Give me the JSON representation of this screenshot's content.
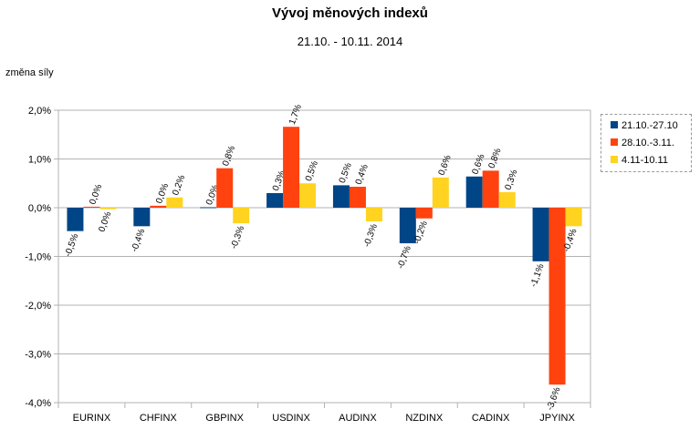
{
  "chart_data": {
    "type": "bar",
    "title": "Vývoj měnových indexů",
    "subtitle": "21.10. - 10.11. 2014",
    "ylabel": "změna síly",
    "xlabel": "",
    "ylim": [
      -4.0,
      2.0
    ],
    "yticks": [
      2.0,
      1.0,
      0.0,
      -1.0,
      -2.0,
      -3.0,
      -4.0
    ],
    "ytick_labels": [
      "2,0%",
      "1,0%",
      "0,0%",
      "-1,0%",
      "-2,0%",
      "-3,0%",
      "-4,0%"
    ],
    "grid": true,
    "legend_position": "right",
    "categories": [
      "EURINX",
      "CHFINX",
      "GBPINX",
      "USDINX",
      "AUDINX",
      "NZDINX",
      "CADINX",
      "JPYINX"
    ],
    "series": [
      {
        "name": "21.10.-27.10",
        "color": "#004586",
        "values": [
          -0.48,
          -0.38,
          0.01,
          0.3,
          0.46,
          -0.73,
          0.64,
          -1.1
        ],
        "labels": [
          "-0,5%",
          "-0,4%",
          "0,0%",
          "0,3%",
          "0,5%",
          "-0,7%",
          "0,6%",
          "-1,1%"
        ]
      },
      {
        "name": "28.10.-3.11.",
        "color": "#ff420e",
        "values": [
          0.02,
          0.04,
          0.81,
          1.66,
          0.43,
          -0.22,
          0.76,
          -3.63
        ],
        "labels": [
          "0,0%",
          "0,0%",
          "0,8%",
          "1,7%",
          "0,4%",
          "-0,2%",
          "0,8%",
          "-3,6%"
        ]
      },
      {
        "name": "4.11-10.11",
        "color": "#ffd320",
        "values": [
          -0.03,
          0.21,
          -0.32,
          0.5,
          -0.28,
          0.62,
          0.32,
          -0.38
        ],
        "labels": [
          "0,0%",
          "0,2%",
          "-0,3%",
          "0,5%",
          "-0,3%",
          "0,6%",
          "0,3%",
          "-0,4%"
        ]
      }
    ]
  }
}
